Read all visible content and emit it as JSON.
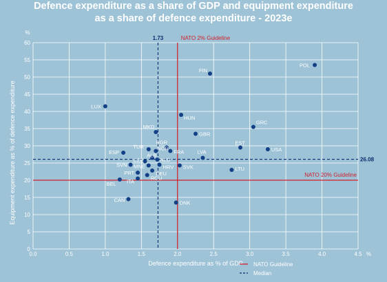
{
  "chart_data": {
    "type": "scatter",
    "title_line1": "Defence expenditure as a share of GDP and equipment expenditure",
    "title_line2": "as a share of defence expenditure - 2023e",
    "xlabel": "Defence expenditure as % of GDP",
    "ylabel": "Equipment expenditure as % of defence expenditure",
    "x_unit": "%",
    "y_unit": "%",
    "xlim": [
      0,
      4.5
    ],
    "ylim": [
      0,
      60
    ],
    "x_ticks": [
      "0.0",
      "0.5",
      "1.0",
      "1.5",
      "2.0",
      "2.5",
      "3.0",
      "3.5",
      "4.0",
      "4.5"
    ],
    "y_ticks": [
      "0",
      "5",
      "10",
      "15",
      "20",
      "25",
      "30",
      "35",
      "40",
      "45",
      "50",
      "55",
      "60"
    ],
    "grid": true,
    "reference_lines": {
      "nato_x": {
        "value": 2.0,
        "label": "NATO 2% Guideline"
      },
      "nato_y": {
        "value": 20,
        "label": "NATO 20% Guideline"
      },
      "median_x": {
        "value": 1.73,
        "label": "1.73"
      },
      "median_y": {
        "value": 26.08,
        "label": "26.08"
      }
    },
    "points": [
      {
        "label": "POL",
        "x": 3.9,
        "y": 53.5
      },
      {
        "label": "FIN",
        "x": 2.45,
        "y": 51
      },
      {
        "label": "LUX",
        "x": 1.0,
        "y": 41.5
      },
      {
        "label": "HUN",
        "x": 2.05,
        "y": 39
      },
      {
        "label": "GRC",
        "x": 3.05,
        "y": 35.5
      },
      {
        "label": "MKD",
        "x": 1.7,
        "y": 34
      },
      {
        "label": "GBR",
        "x": 2.25,
        "y": 33.5
      },
      {
        "label": "BGR",
        "x": 1.85,
        "y": 29.5
      },
      {
        "label": "EST",
        "x": 2.87,
        "y": 29.5
      },
      {
        "label": "USA",
        "x": 3.25,
        "y": 29
      },
      {
        "label": "TUR",
        "x": 1.6,
        "y": 29
      },
      {
        "label": "NOR",
        "x": 1.7,
        "y": 28.5
      },
      {
        "label": "FRA",
        "x": 1.9,
        "y": 28.5
      },
      {
        "label": "ESP",
        "x": 1.25,
        "y": 28
      },
      {
        "label": "LVA",
        "x": 2.35,
        "y": 26.5
      },
      {
        "label": "ALB",
        "x": 1.65,
        "y": 26.5
      },
      {
        "label": "NLD",
        "x": 1.72,
        "y": 26
      },
      {
        "label": "CZE",
        "x": 1.55,
        "y": 25.5
      },
      {
        "label": "HRV",
        "x": 1.75,
        "y": 24.5
      },
      {
        "label": "SVN",
        "x": 1.35,
        "y": 24.5
      },
      {
        "label": "MNE",
        "x": 1.6,
        "y": 24.3
      },
      {
        "label": "SVK",
        "x": 2.03,
        "y": 24.3
      },
      {
        "label": "LTU",
        "x": 2.75,
        "y": 23
      },
      {
        "label": "DEU",
        "x": 1.65,
        "y": 22.8
      },
      {
        "label": "PRT",
        "x": 1.45,
        "y": 22.2
      },
      {
        "label": "ROU",
        "x": 1.58,
        "y": 21.5
      },
      {
        "label": "ITA",
        "x": 1.45,
        "y": 20.5
      },
      {
        "label": "BEL",
        "x": 1.2,
        "y": 20.2
      },
      {
        "label": "CAN",
        "x": 1.32,
        "y": 14.5
      },
      {
        "label": "DNK",
        "x": 1.98,
        "y": 13.5
      }
    ],
    "legend": [
      {
        "label": "NATO Guideline",
        "style": "solid",
        "color": "#d0212d"
      },
      {
        "label": "Median",
        "style": "dashed",
        "color": "#0a2d6b"
      }
    ],
    "colors": {
      "point": "#123f86",
      "nato": "#d0212d",
      "median": "#0a2d6b",
      "grid": "#ffffff",
      "background": "#9ec2d6"
    }
  }
}
